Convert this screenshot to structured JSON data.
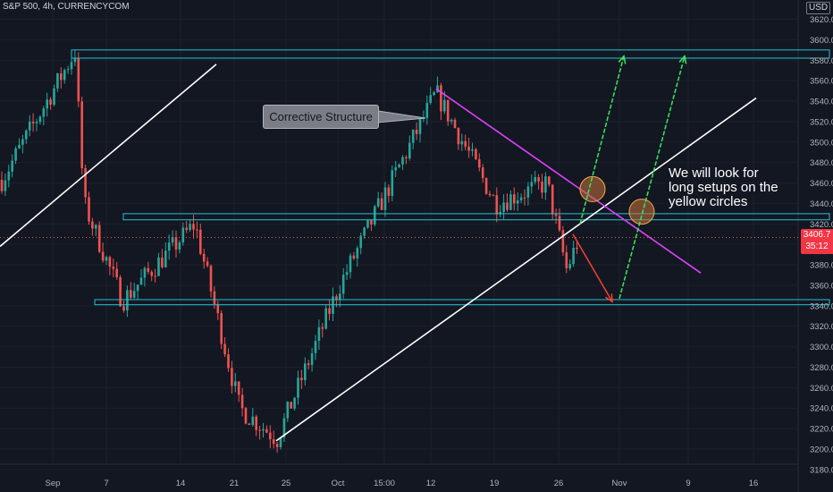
{
  "header": {
    "symbol": "S&P 500, 4h, CURRENCYCOM",
    "currency": "USD"
  },
  "annotations": {
    "callout": "Corrective Structure",
    "note": "We will look for long setups on the yellow circles"
  },
  "price_tag": {
    "price": "3406.7",
    "countdown": "35:12",
    "color": "#f23645"
  },
  "colors": {
    "background": "#131722",
    "up": "#26a69a",
    "down": "#ef5350",
    "zone": "#21c2d6",
    "trendline": "#ffffff",
    "downtrend": "#e040fb",
    "arrow_up": "#39e75f",
    "arrow_down": "#f44336",
    "circle_fill": "#c9733c"
  },
  "chart_data": {
    "type": "candlestick",
    "title": "S&P 500, 4h, CURRENCYCOM",
    "ylim": [
      3172,
      3626
    ],
    "y_ticks": [
      3180,
      3200,
      3220,
      3240,
      3260,
      3280,
      3300,
      3320,
      3340,
      3360,
      3380,
      3400,
      3420,
      3440,
      3460,
      3480,
      3500,
      3520,
      3540,
      3560,
      3580,
      3600,
      3620
    ],
    "x_tick_labels": [
      "Sep",
      "7",
      "14",
      "21",
      "25",
      "Oct",
      "15:00",
      "12",
      "19",
      "26",
      "Nov",
      "9",
      "16"
    ],
    "price_path_approx": [
      {
        "x": "Sep",
        "y": 3460
      },
      {
        "x": "Sep 3",
        "y": 3588
      },
      {
        "x": "Sep 4",
        "y": 3440
      },
      {
        "x": "Sep 8",
        "y": 3345
      },
      {
        "x": "Sep 16",
        "y": 3420
      },
      {
        "x": "Sep 23",
        "y": 3240
      },
      {
        "x": "Sep 24",
        "y": 3210
      },
      {
        "x": "Oct",
        "y": 3360
      },
      {
        "x": "Oct 12",
        "y": 3548
      },
      {
        "x": "Oct 19",
        "y": 3440
      },
      {
        "x": "Oct 23",
        "y": 3460
      },
      {
        "x": "Oct 26",
        "y": 3375
      },
      {
        "x": "Oct 27",
        "y": 3406.7
      }
    ],
    "last_price": 3406.7,
    "zones": [
      {
        "low": 3582,
        "high": 3590
      },
      {
        "low": 3424,
        "high": 3430
      },
      {
        "low": 3341,
        "high": 3346
      }
    ],
    "projection": {
      "low": 3345,
      "targets": [
        3580,
        3580
      ]
    }
  }
}
